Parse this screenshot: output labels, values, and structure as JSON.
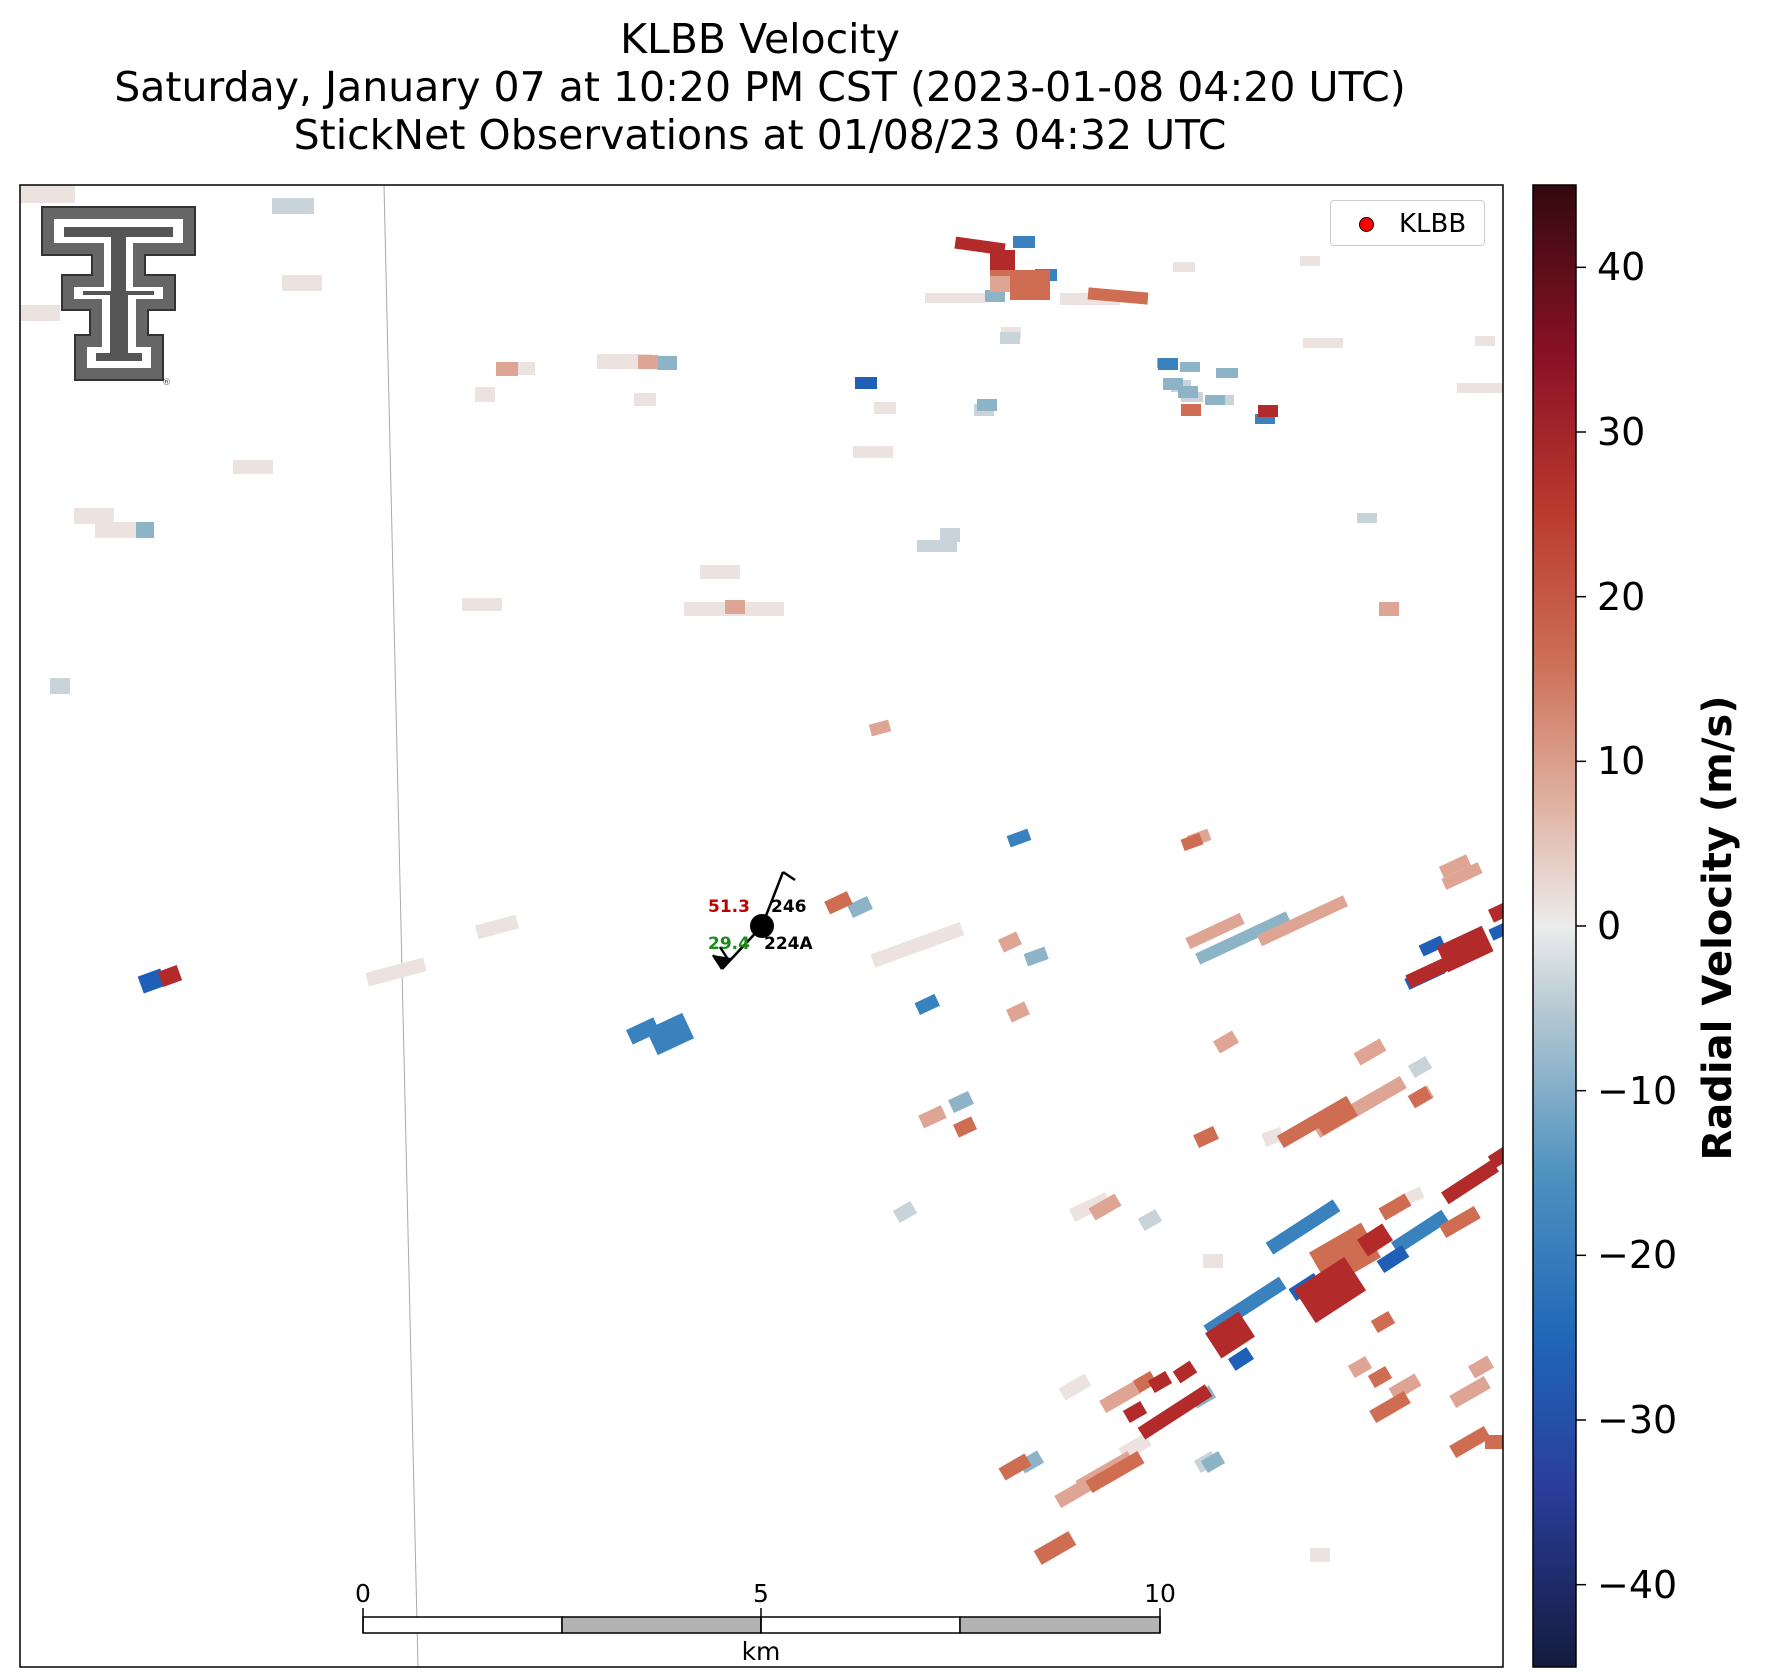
{
  "title": {
    "line1": "KLBB Velocity",
    "line2": "Saturday, January 07 at 10:20 PM CST (2023-01-08 04:20 UTC)",
    "line3": "StickNet Observations at 01/08/23 04:32 UTC"
  },
  "legend": {
    "label": "KLBB",
    "marker_color": "#ff0000"
  },
  "colorbar": {
    "label": "Radial Velocity (m/s)",
    "range": [
      -45,
      45
    ],
    "ticks": [
      40,
      30,
      20,
      10,
      0,
      -10,
      -20,
      -30,
      -40
    ],
    "tick_labels": [
      "40",
      "30",
      "20",
      "10",
      "0",
      "−10",
      "−20",
      "−30",
      "−40"
    ]
  },
  "scalebar": {
    "labels": [
      "0",
      "5",
      "10"
    ],
    "unit": "km"
  },
  "stations": [
    {
      "id": "246",
      "value": "51.3",
      "value_color": "#c00000"
    },
    {
      "id": "224A",
      "value": "29.4",
      "value_color": "#1a8a1a"
    }
  ],
  "logo": {
    "name": "texas-tech-double-t-logo"
  }
}
